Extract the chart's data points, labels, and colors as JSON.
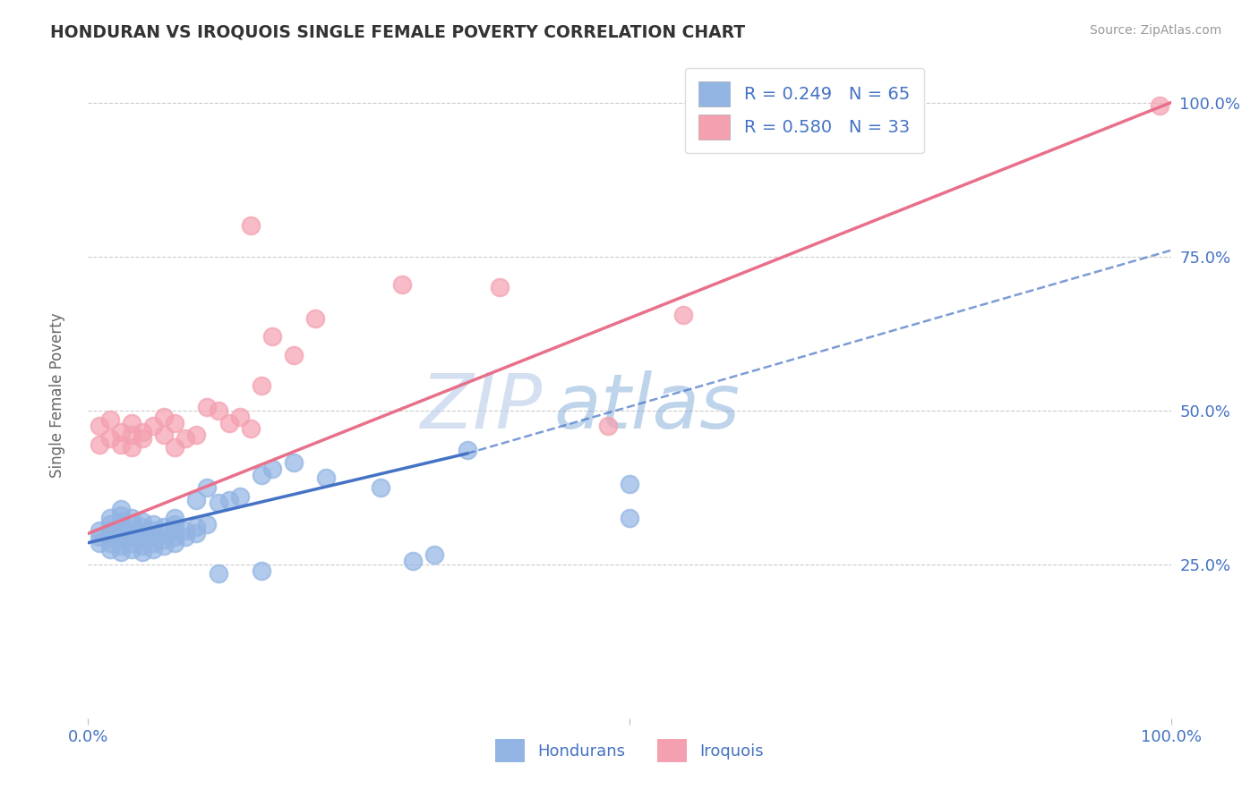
{
  "title": "HONDURAN VS IROQUOIS SINGLE FEMALE POVERTY CORRELATION CHART",
  "source": "Source: ZipAtlas.com",
  "ylabel": "Single Female Poverty",
  "xlabel": "",
  "xlim": [
    0,
    1
  ],
  "ylim": [
    0,
    1.05
  ],
  "grid_color": "#cccccc",
  "background_color": "#ffffff",
  "honduran_color": "#92b4e3",
  "iroquois_color": "#f4a0b0",
  "honduran_line_color": "#4472c4",
  "iroquois_line_color": "#e8708a",
  "label_color": "#4472c4",
  "R_honduran": 0.249,
  "N_honduran": 65,
  "R_iroquois": 0.58,
  "N_iroquois": 33,
  "watermark": "ZIPatlas",
  "watermark_color": "#c8d8f0",
  "iroquois_line": {
    "x0": 0.0,
    "y0": 0.3,
    "x1": 1.0,
    "y1": 1.0
  },
  "honduran_solid_line": {
    "x0": 0.0,
    "y0": 0.285,
    "x1": 0.35,
    "y1": 0.43
  },
  "honduran_dash_line": {
    "x0": 0.35,
    "y0": 0.43,
    "x1": 1.0,
    "y1": 0.76
  },
  "honduran_points": [
    [
      0.01,
      0.285
    ],
    [
      0.01,
      0.295
    ],
    [
      0.01,
      0.305
    ],
    [
      0.02,
      0.275
    ],
    [
      0.02,
      0.285
    ],
    [
      0.02,
      0.295
    ],
    [
      0.02,
      0.305
    ],
    [
      0.02,
      0.315
    ],
    [
      0.02,
      0.325
    ],
    [
      0.03,
      0.27
    ],
    [
      0.03,
      0.28
    ],
    [
      0.03,
      0.29
    ],
    [
      0.03,
      0.3
    ],
    [
      0.03,
      0.31
    ],
    [
      0.03,
      0.32
    ],
    [
      0.03,
      0.33
    ],
    [
      0.03,
      0.34
    ],
    [
      0.04,
      0.275
    ],
    [
      0.04,
      0.285
    ],
    [
      0.04,
      0.295
    ],
    [
      0.04,
      0.305
    ],
    [
      0.04,
      0.315
    ],
    [
      0.04,
      0.325
    ],
    [
      0.05,
      0.27
    ],
    [
      0.05,
      0.28
    ],
    [
      0.05,
      0.29
    ],
    [
      0.05,
      0.3
    ],
    [
      0.05,
      0.31
    ],
    [
      0.05,
      0.32
    ],
    [
      0.06,
      0.275
    ],
    [
      0.06,
      0.285
    ],
    [
      0.06,
      0.295
    ],
    [
      0.06,
      0.305
    ],
    [
      0.06,
      0.315
    ],
    [
      0.07,
      0.28
    ],
    [
      0.07,
      0.29
    ],
    [
      0.07,
      0.3
    ],
    [
      0.07,
      0.31
    ],
    [
      0.08,
      0.285
    ],
    [
      0.08,
      0.295
    ],
    [
      0.08,
      0.305
    ],
    [
      0.08,
      0.315
    ],
    [
      0.08,
      0.325
    ],
    [
      0.09,
      0.295
    ],
    [
      0.09,
      0.305
    ],
    [
      0.1,
      0.3
    ],
    [
      0.1,
      0.31
    ],
    [
      0.1,
      0.355
    ],
    [
      0.11,
      0.315
    ],
    [
      0.11,
      0.375
    ],
    [
      0.12,
      0.35
    ],
    [
      0.13,
      0.355
    ],
    [
      0.14,
      0.36
    ],
    [
      0.16,
      0.395
    ],
    [
      0.17,
      0.405
    ],
    [
      0.19,
      0.415
    ],
    [
      0.22,
      0.39
    ],
    [
      0.27,
      0.375
    ],
    [
      0.3,
      0.255
    ],
    [
      0.32,
      0.265
    ],
    [
      0.35,
      0.435
    ],
    [
      0.12,
      0.235
    ],
    [
      0.16,
      0.24
    ],
    [
      0.5,
      0.38
    ],
    [
      0.5,
      0.325
    ]
  ],
  "iroquois_points": [
    [
      0.01,
      0.445
    ],
    [
      0.01,
      0.475
    ],
    [
      0.02,
      0.455
    ],
    [
      0.02,
      0.485
    ],
    [
      0.03,
      0.445
    ],
    [
      0.03,
      0.465
    ],
    [
      0.04,
      0.44
    ],
    [
      0.04,
      0.46
    ],
    [
      0.04,
      0.48
    ],
    [
      0.05,
      0.455
    ],
    [
      0.05,
      0.465
    ],
    [
      0.06,
      0.475
    ],
    [
      0.07,
      0.46
    ],
    [
      0.07,
      0.49
    ],
    [
      0.08,
      0.44
    ],
    [
      0.08,
      0.48
    ],
    [
      0.09,
      0.455
    ],
    [
      0.1,
      0.46
    ],
    [
      0.11,
      0.505
    ],
    [
      0.12,
      0.5
    ],
    [
      0.13,
      0.48
    ],
    [
      0.14,
      0.49
    ],
    [
      0.15,
      0.47
    ],
    [
      0.16,
      0.54
    ],
    [
      0.17,
      0.62
    ],
    [
      0.19,
      0.59
    ],
    [
      0.21,
      0.65
    ],
    [
      0.29,
      0.705
    ],
    [
      0.38,
      0.7
    ],
    [
      0.48,
      0.475
    ],
    [
      0.55,
      0.655
    ],
    [
      0.99,
      0.995
    ],
    [
      0.15,
      0.8
    ]
  ]
}
